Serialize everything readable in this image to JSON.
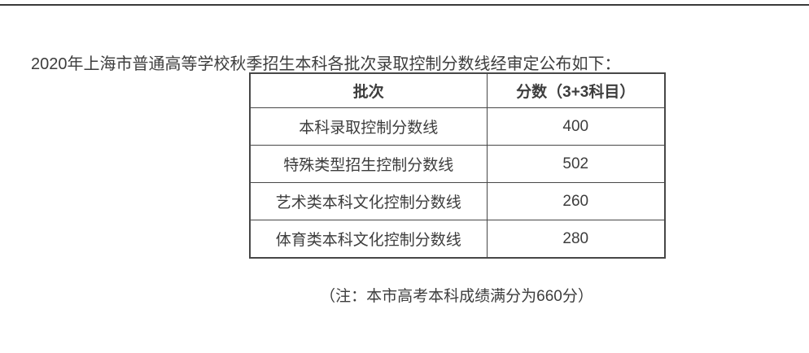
{
  "page": {
    "intro": "2020年上海市普通高等学校秋季招生本科各批次录取控制分数线经审定公布如下：",
    "note": "（注：本市高考本科成绩满分为660分）"
  },
  "table": {
    "headers": {
      "batch": "批次",
      "score": "分数（3+3科目）"
    },
    "rows": [
      {
        "batch": "本科录取控制分数线",
        "score": "400"
      },
      {
        "batch": "特殊类型招生控制分数线",
        "score": "502"
      },
      {
        "batch": "艺术类本科文化控制分数线",
        "score": "260"
      },
      {
        "batch": "体育类本科文化控制分数线",
        "score": "280"
      }
    ]
  },
  "colors": {
    "background": "#ffffff",
    "text": "#3d3d3d",
    "table_border": "#474747",
    "top_rule": "#3a3a3a"
  }
}
